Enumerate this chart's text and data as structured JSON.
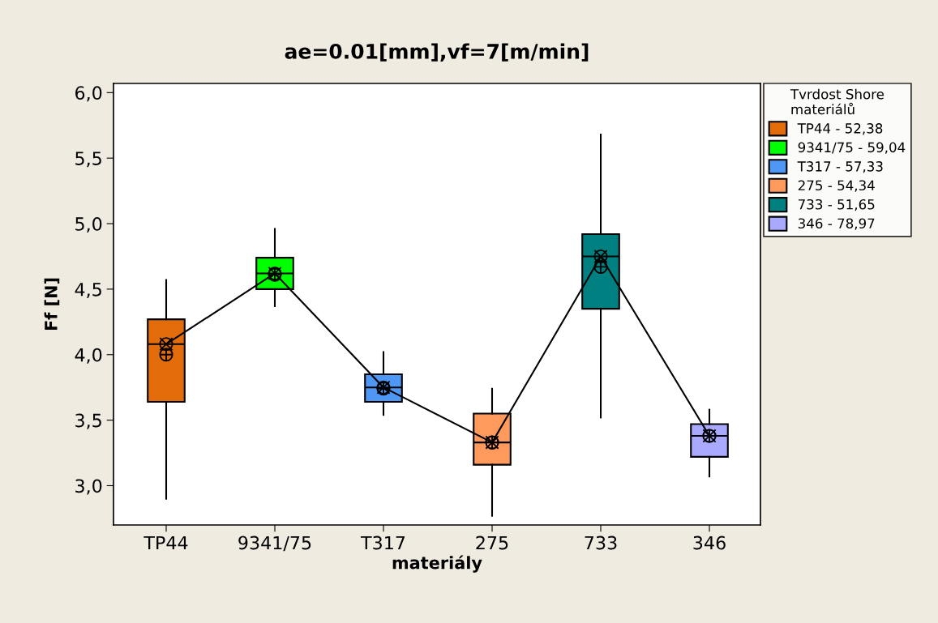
{
  "chart_data": {
    "type": "box",
    "title": "ae=0.01[mm],vf=7[m/min]",
    "xlabel": "materiály",
    "ylabel": "Ff [N]",
    "legend_title": "Tvrdost Shore\nmateriálů",
    "legend": "right",
    "categories": [
      "TP44",
      "9341/75",
      "T317",
      "275",
      "733",
      "346"
    ],
    "ylim": [
      2.7,
      6.07
    ],
    "yticks": [
      {
        "value": 3.0,
        "label": "3,0"
      },
      {
        "value": 3.5,
        "label": "3,5"
      },
      {
        "value": 4.0,
        "label": "4,0"
      },
      {
        "value": 4.5,
        "label": "4,5"
      },
      {
        "value": 5.0,
        "label": "5,0"
      },
      {
        "value": 5.5,
        "label": "5,5"
      },
      {
        "value": 6.0,
        "label": "6,0"
      }
    ],
    "grid": false,
    "series": [
      {
        "name": "TP44 - 52,38",
        "color": "#e36c0a",
        "boxes": [
          {
            "low": 2.9,
            "q1": 3.64,
            "median": 4.08,
            "q3": 4.27,
            "high": 4.57,
            "mean": 4.0
          },
          null,
          null,
          null,
          null,
          null
        ]
      },
      {
        "name": "9341/75 - 59,04",
        "color": "#00ff00",
        "boxes": [
          null,
          {
            "low": 4.37,
            "q1": 4.5,
            "median": 4.62,
            "q3": 4.74,
            "high": 4.96,
            "mean": 4.61
          },
          null,
          null,
          null,
          null
        ]
      },
      {
        "name": "T317 - 57,33",
        "color": "#4f97f5",
        "boxes": [
          null,
          null,
          {
            "low": 3.54,
            "q1": 3.64,
            "median": 3.75,
            "q3": 3.85,
            "high": 4.02,
            "mean": 3.74
          },
          null,
          null,
          null
        ]
      },
      {
        "name": "275 - 54,34",
        "color": "#ff9a5c",
        "boxes": [
          null,
          null,
          null,
          {
            "low": 2.77,
            "q1": 3.16,
            "median": 3.33,
            "q3": 3.55,
            "high": 3.74,
            "mean": 3.33
          },
          null,
          null
        ]
      },
      {
        "name": "733 - 51,65",
        "color": "#008080",
        "boxes": [
          null,
          null,
          null,
          null,
          {
            "low": 3.52,
            "q1": 4.35,
            "median": 4.75,
            "q3": 4.92,
            "high": 5.68,
            "mean": 4.67
          },
          null
        ]
      },
      {
        "name": "346 - 78,97",
        "color": "#a9a9ff",
        "boxes": [
          null,
          null,
          null,
          null,
          null,
          {
            "low": 3.07,
            "q1": 3.22,
            "median": 3.38,
            "q3": 3.47,
            "high": 3.58,
            "mean": 3.38
          }
        ]
      },
      {
        "type": "line",
        "color": "#000000",
        "marker": "circle",
        "values": [
          4.08,
          4.62,
          3.75,
          3.33,
          4.75,
          3.38
        ]
      }
    ]
  }
}
